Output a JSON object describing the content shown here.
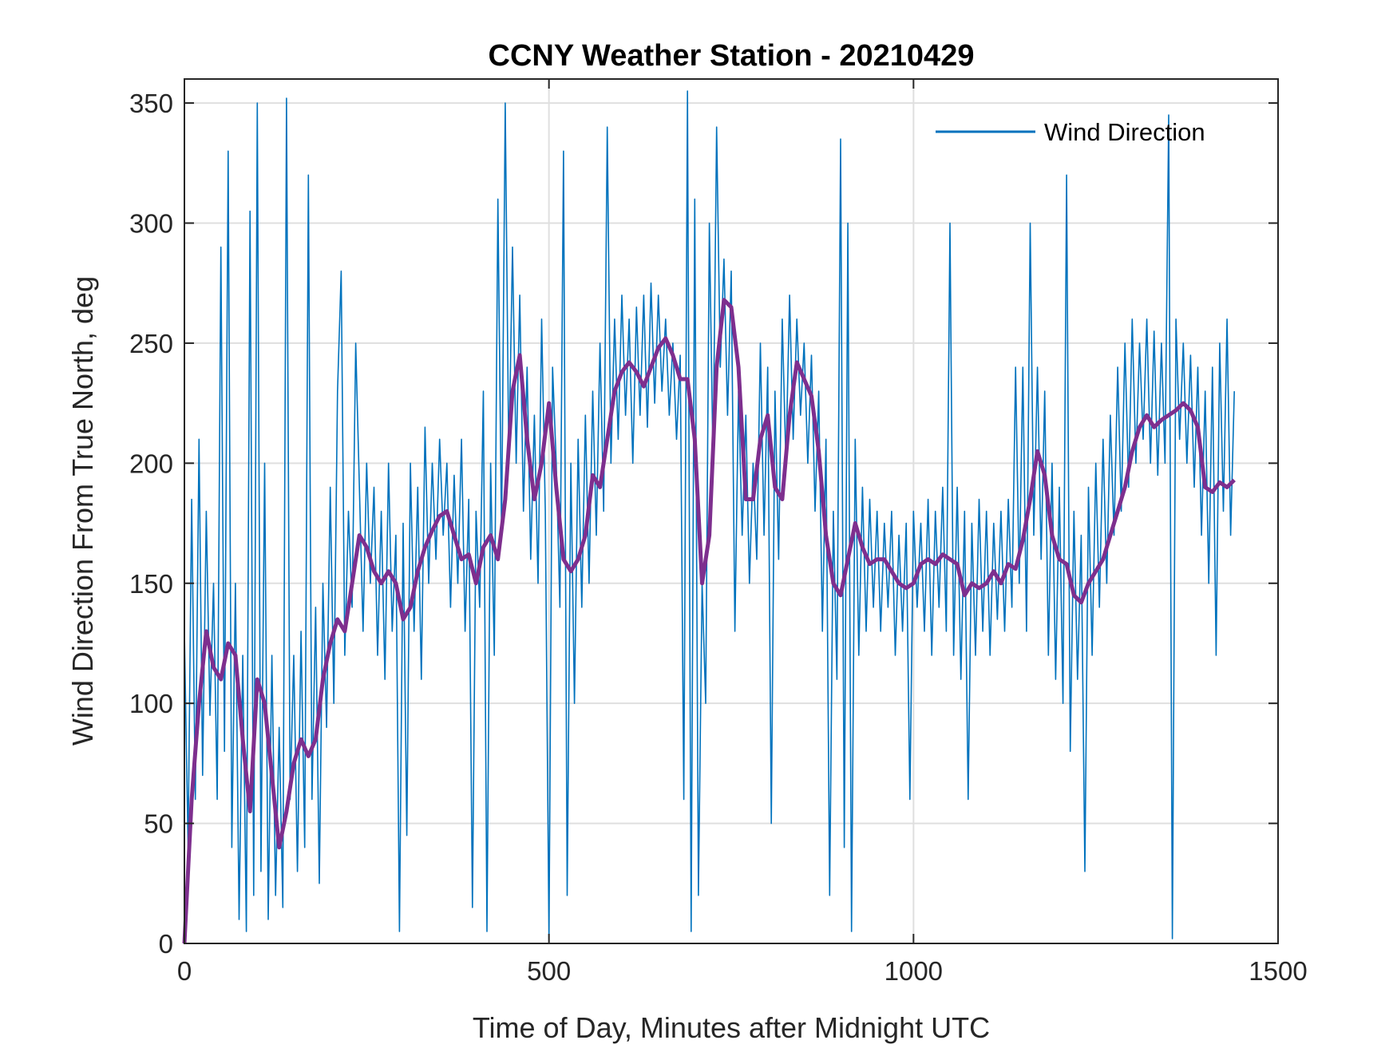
{
  "chart_data": {
    "type": "line",
    "title": "CCNY Weather Station - 20210429",
    "xlabel": "Time of Day, Minutes after Midnight UTC",
    "ylabel": "Wind Direction From True North, deg",
    "xlim": [
      0,
      1500
    ],
    "ylim": [
      0,
      360
    ],
    "xticks": [
      0,
      500,
      1000,
      1500
    ],
    "yticks": [
      0,
      50,
      100,
      150,
      200,
      250,
      300,
      350
    ],
    "grid": true,
    "legend_placement": "top-right",
    "series": [
      {
        "name": "Wind Direction",
        "color": "#0072BD",
        "x": [
          0,
          5,
          10,
          15,
          20,
          25,
          30,
          35,
          40,
          45,
          50,
          55,
          60,
          65,
          70,
          75,
          80,
          85,
          90,
          95,
          100,
          105,
          110,
          115,
          120,
          125,
          130,
          135,
          140,
          145,
          150,
          155,
          160,
          165,
          170,
          175,
          180,
          185,
          190,
          195,
          200,
          205,
          210,
          215,
          220,
          225,
          230,
          235,
          240,
          245,
          250,
          255,
          260,
          265,
          270,
          275,
          280,
          285,
          290,
          295,
          300,
          305,
          310,
          315,
          320,
          325,
          330,
          335,
          340,
          345,
          350,
          355,
          360,
          365,
          370,
          375,
          380,
          385,
          390,
          395,
          400,
          405,
          410,
          415,
          420,
          425,
          430,
          435,
          440,
          445,
          450,
          455,
          460,
          465,
          470,
          475,
          480,
          485,
          490,
          495,
          500,
          505,
          510,
          515,
          520,
          525,
          530,
          535,
          540,
          545,
          550,
          555,
          560,
          565,
          570,
          575,
          580,
          585,
          590,
          595,
          600,
          605,
          610,
          615,
          620,
          625,
          630,
          635,
          640,
          645,
          650,
          655,
          660,
          665,
          670,
          675,
          680,
          685,
          690,
          695,
          700,
          705,
          710,
          715,
          720,
          725,
          730,
          735,
          740,
          745,
          750,
          755,
          760,
          765,
          770,
          775,
          780,
          785,
          790,
          795,
          800,
          805,
          810,
          815,
          820,
          825,
          830,
          835,
          840,
          845,
          850,
          855,
          860,
          865,
          870,
          875,
          880,
          885,
          890,
          895,
          900,
          905,
          910,
          915,
          920,
          925,
          930,
          935,
          940,
          945,
          950,
          955,
          960,
          965,
          970,
          975,
          980,
          985,
          990,
          995,
          1000,
          1005,
          1010,
          1015,
          1020,
          1025,
          1030,
          1035,
          1040,
          1045,
          1050,
          1055,
          1060,
          1065,
          1070,
          1075,
          1080,
          1085,
          1090,
          1095,
          1100,
          1105,
          1110,
          1115,
          1120,
          1125,
          1130,
          1135,
          1140,
          1145,
          1150,
          1155,
          1160,
          1165,
          1170,
          1175,
          1180,
          1185,
          1190,
          1195,
          1200,
          1205,
          1210,
          1215,
          1220,
          1225,
          1230,
          1235,
          1240,
          1245,
          1250,
          1255,
          1260,
          1265,
          1270,
          1275,
          1280,
          1285,
          1290,
          1295,
          1300,
          1305,
          1310,
          1315,
          1320,
          1325,
          1330,
          1335,
          1340,
          1345,
          1350,
          1355,
          1360,
          1365,
          1370,
          1375,
          1380,
          1385,
          1390,
          1395,
          1400,
          1405,
          1410,
          1415,
          1420,
          1425,
          1430,
          1435,
          1440
        ],
        "y": [
          130,
          40,
          185,
          60,
          210,
          70,
          180,
          95,
          150,
          60,
          290,
          80,
          330,
          40,
          150,
          10,
          120,
          5,
          305,
          20,
          350,
          30,
          200,
          10,
          120,
          20,
          90,
          15,
          352,
          60,
          120,
          30,
          130,
          40,
          320,
          60,
          140,
          25,
          150,
          90,
          190,
          100,
          230,
          280,
          120,
          180,
          140,
          250,
          190,
          130,
          200,
          150,
          190,
          120,
          180,
          110,
          200,
          130,
          170,
          5,
          175,
          45,
          200,
          130,
          190,
          110,
          215,
          150,
          200,
          160,
          210,
          170,
          200,
          140,
          195,
          150,
          210,
          130,
          185,
          15,
          180,
          140,
          230,
          5,
          200,
          120,
          310,
          170,
          350,
          200,
          290,
          200,
          270,
          180,
          240,
          160,
          220,
          150,
          260,
          180,
          2,
          240,
          200,
          140,
          330,
          20,
          200,
          100,
          210,
          140,
          220,
          150,
          230,
          170,
          250,
          180,
          340,
          200,
          260,
          210,
          270,
          220,
          260,
          200,
          265,
          220,
          270,
          215,
          275,
          225,
          270,
          230,
          260,
          220,
          250,
          210,
          245,
          60,
          355,
          5,
          310,
          20,
          150,
          100,
          300,
          200,
          340,
          240,
          285,
          220,
          280,
          130,
          230,
          170,
          220,
          150,
          200,
          160,
          250,
          170,
          240,
          50,
          230,
          160,
          260,
          200,
          270,
          210,
          260,
          220,
          250,
          200,
          245,
          180,
          230,
          130,
          210,
          20,
          180,
          110,
          335,
          40,
          300,
          5,
          210,
          120,
          190,
          130,
          185,
          140,
          180,
          130,
          175,
          140,
          180,
          120,
          170,
          130,
          175,
          60,
          180,
          140,
          175,
          130,
          185,
          120,
          180,
          140,
          190,
          130,
          300,
          120,
          190,
          110,
          180,
          60,
          175,
          120,
          185,
          130,
          180,
          120,
          175,
          135,
          180,
          130,
          185,
          140,
          240,
          150,
          240,
          130,
          300,
          170,
          240,
          160,
          230,
          120,
          200,
          110,
          190,
          100,
          320,
          80,
          180,
          110,
          170,
          30,
          190,
          120,
          200,
          140,
          210,
          150,
          220,
          170,
          240,
          180,
          250,
          190,
          260,
          200,
          250,
          210,
          260,
          200,
          255,
          195,
          250,
          200,
          345,
          2,
          260,
          210,
          250,
          200,
          245,
          190,
          240,
          170,
          230,
          150,
          240,
          120,
          250,
          180,
          260,
          170,
          230
        ]
      },
      {
        "color": "#7E2F8E",
        "x": [
          0,
          10,
          20,
          30,
          40,
          50,
          60,
          70,
          80,
          90,
          100,
          110,
          120,
          130,
          140,
          150,
          160,
          170,
          180,
          190,
          200,
          210,
          220,
          230,
          240,
          250,
          260,
          270,
          280,
          290,
          300,
          310,
          320,
          330,
          340,
          350,
          360,
          370,
          380,
          390,
          400,
          410,
          420,
          430,
          440,
          450,
          460,
          470,
          480,
          490,
          500,
          510,
          520,
          530,
          540,
          550,
          560,
          570,
          580,
          590,
          600,
          610,
          620,
          630,
          640,
          650,
          660,
          670,
          680,
          690,
          700,
          710,
          720,
          730,
          740,
          750,
          760,
          770,
          780,
          790,
          800,
          810,
          820,
          830,
          840,
          850,
          860,
          870,
          880,
          890,
          900,
          910,
          920,
          930,
          940,
          950,
          960,
          970,
          980,
          990,
          1000,
          1010,
          1020,
          1030,
          1040,
          1050,
          1060,
          1070,
          1080,
          1090,
          1100,
          1110,
          1120,
          1130,
          1140,
          1150,
          1160,
          1170,
          1180,
          1190,
          1200,
          1210,
          1220,
          1230,
          1240,
          1250,
          1260,
          1270,
          1280,
          1290,
          1300,
          1310,
          1320,
          1330,
          1340,
          1350,
          1360,
          1370,
          1380,
          1390,
          1400,
          1410,
          1420,
          1430,
          1440
        ],
        "y": [
          0,
          60,
          100,
          130,
          115,
          110,
          125,
          120,
          85,
          55,
          110,
          100,
          70,
          40,
          55,
          75,
          85,
          78,
          85,
          110,
          125,
          135,
          130,
          150,
          170,
          165,
          155,
          150,
          155,
          150,
          135,
          140,
          155,
          165,
          172,
          178,
          180,
          170,
          160,
          162,
          150,
          165,
          170,
          160,
          185,
          230,
          245,
          210,
          185,
          200,
          225,
          190,
          160,
          155,
          160,
          170,
          195,
          190,
          210,
          230,
          238,
          242,
          238,
          232,
          240,
          248,
          252,
          245,
          235,
          235,
          210,
          150,
          170,
          240,
          268,
          265,
          240,
          185,
          185,
          210,
          220,
          190,
          185,
          220,
          242,
          235,
          228,
          205,
          170,
          150,
          145,
          160,
          175,
          165,
          158,
          160,
          160,
          155,
          150,
          148,
          150,
          158,
          160,
          158,
          162,
          160,
          158,
          145,
          150,
          148,
          150,
          155,
          150,
          158,
          156,
          168,
          185,
          205,
          195,
          170,
          160,
          158,
          145,
          142,
          150,
          155,
          160,
          170,
          180,
          190,
          205,
          215,
          220,
          215,
          218,
          220,
          222,
          225,
          222,
          215,
          190,
          188,
          192,
          190,
          193
        ]
      }
    ]
  }
}
